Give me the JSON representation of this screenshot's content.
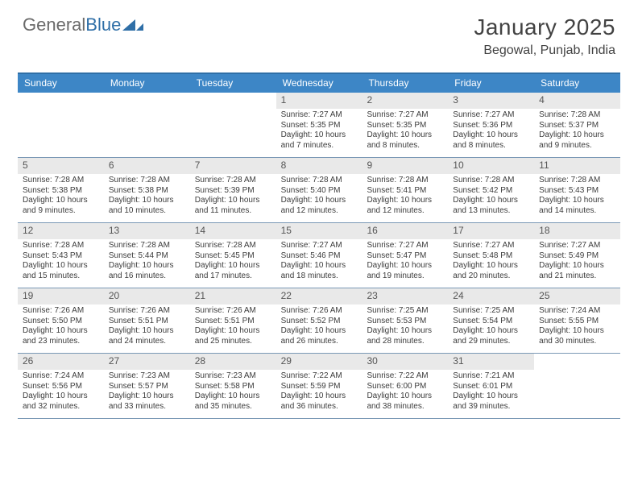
{
  "logo": {
    "word1": "General",
    "word2": "Blue"
  },
  "title": "January 2025",
  "location": "Begowal, Punjab, India",
  "colors": {
    "header_bg": "#3d86c6",
    "border_top": "#2f6fa7",
    "week_divider": "#7a98b5",
    "daynum_bg": "#e9e9e9",
    "text": "#3c3c3c",
    "logo_gray": "#6a6a6a",
    "logo_blue": "#2f6fa7"
  },
  "day_names": [
    "Sunday",
    "Monday",
    "Tuesday",
    "Wednesday",
    "Thursday",
    "Friday",
    "Saturday"
  ],
  "weeks": [
    [
      {
        "n": "",
        "empty": true
      },
      {
        "n": "",
        "empty": true
      },
      {
        "n": "",
        "empty": true
      },
      {
        "n": "1",
        "sunrise": "7:27 AM",
        "sunset": "5:35 PM",
        "dlh": "10",
        "dlm": "7"
      },
      {
        "n": "2",
        "sunrise": "7:27 AM",
        "sunset": "5:35 PM",
        "dlh": "10",
        "dlm": "8"
      },
      {
        "n": "3",
        "sunrise": "7:27 AM",
        "sunset": "5:36 PM",
        "dlh": "10",
        "dlm": "8"
      },
      {
        "n": "4",
        "sunrise": "7:28 AM",
        "sunset": "5:37 PM",
        "dlh": "10",
        "dlm": "9"
      }
    ],
    [
      {
        "n": "5",
        "sunrise": "7:28 AM",
        "sunset": "5:38 PM",
        "dlh": "10",
        "dlm": "9"
      },
      {
        "n": "6",
        "sunrise": "7:28 AM",
        "sunset": "5:38 PM",
        "dlh": "10",
        "dlm": "10"
      },
      {
        "n": "7",
        "sunrise": "7:28 AM",
        "sunset": "5:39 PM",
        "dlh": "10",
        "dlm": "11"
      },
      {
        "n": "8",
        "sunrise": "7:28 AM",
        "sunset": "5:40 PM",
        "dlh": "10",
        "dlm": "12"
      },
      {
        "n": "9",
        "sunrise": "7:28 AM",
        "sunset": "5:41 PM",
        "dlh": "10",
        "dlm": "12"
      },
      {
        "n": "10",
        "sunrise": "7:28 AM",
        "sunset": "5:42 PM",
        "dlh": "10",
        "dlm": "13"
      },
      {
        "n": "11",
        "sunrise": "7:28 AM",
        "sunset": "5:43 PM",
        "dlh": "10",
        "dlm": "14"
      }
    ],
    [
      {
        "n": "12",
        "sunrise": "7:28 AM",
        "sunset": "5:43 PM",
        "dlh": "10",
        "dlm": "15"
      },
      {
        "n": "13",
        "sunrise": "7:28 AM",
        "sunset": "5:44 PM",
        "dlh": "10",
        "dlm": "16"
      },
      {
        "n": "14",
        "sunrise": "7:28 AM",
        "sunset": "5:45 PM",
        "dlh": "10",
        "dlm": "17"
      },
      {
        "n": "15",
        "sunrise": "7:27 AM",
        "sunset": "5:46 PM",
        "dlh": "10",
        "dlm": "18"
      },
      {
        "n": "16",
        "sunrise": "7:27 AM",
        "sunset": "5:47 PM",
        "dlh": "10",
        "dlm": "19"
      },
      {
        "n": "17",
        "sunrise": "7:27 AM",
        "sunset": "5:48 PM",
        "dlh": "10",
        "dlm": "20"
      },
      {
        "n": "18",
        "sunrise": "7:27 AM",
        "sunset": "5:49 PM",
        "dlh": "10",
        "dlm": "21"
      }
    ],
    [
      {
        "n": "19",
        "sunrise": "7:26 AM",
        "sunset": "5:50 PM",
        "dlh": "10",
        "dlm": "23"
      },
      {
        "n": "20",
        "sunrise": "7:26 AM",
        "sunset": "5:51 PM",
        "dlh": "10",
        "dlm": "24"
      },
      {
        "n": "21",
        "sunrise": "7:26 AM",
        "sunset": "5:51 PM",
        "dlh": "10",
        "dlm": "25"
      },
      {
        "n": "22",
        "sunrise": "7:26 AM",
        "sunset": "5:52 PM",
        "dlh": "10",
        "dlm": "26"
      },
      {
        "n": "23",
        "sunrise": "7:25 AM",
        "sunset": "5:53 PM",
        "dlh": "10",
        "dlm": "28"
      },
      {
        "n": "24",
        "sunrise": "7:25 AM",
        "sunset": "5:54 PM",
        "dlh": "10",
        "dlm": "29"
      },
      {
        "n": "25",
        "sunrise": "7:24 AM",
        "sunset": "5:55 PM",
        "dlh": "10",
        "dlm": "30"
      }
    ],
    [
      {
        "n": "26",
        "sunrise": "7:24 AM",
        "sunset": "5:56 PM",
        "dlh": "10",
        "dlm": "32"
      },
      {
        "n": "27",
        "sunrise": "7:23 AM",
        "sunset": "5:57 PM",
        "dlh": "10",
        "dlm": "33"
      },
      {
        "n": "28",
        "sunrise": "7:23 AM",
        "sunset": "5:58 PM",
        "dlh": "10",
        "dlm": "35"
      },
      {
        "n": "29",
        "sunrise": "7:22 AM",
        "sunset": "5:59 PM",
        "dlh": "10",
        "dlm": "36"
      },
      {
        "n": "30",
        "sunrise": "7:22 AM",
        "sunset": "6:00 PM",
        "dlh": "10",
        "dlm": "38"
      },
      {
        "n": "31",
        "sunrise": "7:21 AM",
        "sunset": "6:01 PM",
        "dlh": "10",
        "dlm": "39"
      },
      {
        "n": "",
        "empty": true
      }
    ]
  ],
  "labels": {
    "sunrise": "Sunrise:",
    "sunset": "Sunset:",
    "daylight_prefix": "Daylight:",
    "hours_word": "hours",
    "and_word": "and",
    "minutes_word": "minutes."
  }
}
